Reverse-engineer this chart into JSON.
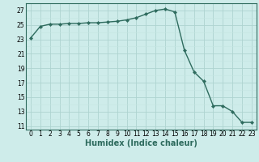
{
  "x": [
    0,
    1,
    2,
    3,
    4,
    5,
    6,
    7,
    8,
    9,
    10,
    11,
    12,
    13,
    14,
    15,
    16,
    17,
    18,
    19,
    20,
    21,
    22,
    23
  ],
  "y": [
    23.2,
    24.8,
    25.1,
    25.1,
    25.2,
    25.2,
    25.3,
    25.3,
    25.4,
    25.5,
    25.7,
    26.0,
    26.5,
    27.0,
    27.2,
    26.8,
    21.5,
    18.5,
    17.2,
    13.8,
    13.8,
    13.0,
    11.5,
    11.5
  ],
  "line_color": "#2e6b5e",
  "marker": "D",
  "marker_size": 2.2,
  "bg_color": "#ceecea",
  "grid_major_color": "#aed4d0",
  "grid_minor_color": "#c5e5e2",
  "xlabel": "Humidex (Indice chaleur)",
  "xlim": [
    -0.5,
    23.5
  ],
  "ylim": [
    10.5,
    28.0
  ],
  "yticks": [
    11,
    13,
    15,
    17,
    19,
    21,
    23,
    25,
    27
  ],
  "xticks": [
    0,
    1,
    2,
    3,
    4,
    5,
    6,
    7,
    8,
    9,
    10,
    11,
    12,
    13,
    14,
    15,
    16,
    17,
    18,
    19,
    20,
    21,
    22,
    23
  ],
  "tick_fontsize": 5.5,
  "label_fontsize": 7.0,
  "linewidth": 1.0
}
